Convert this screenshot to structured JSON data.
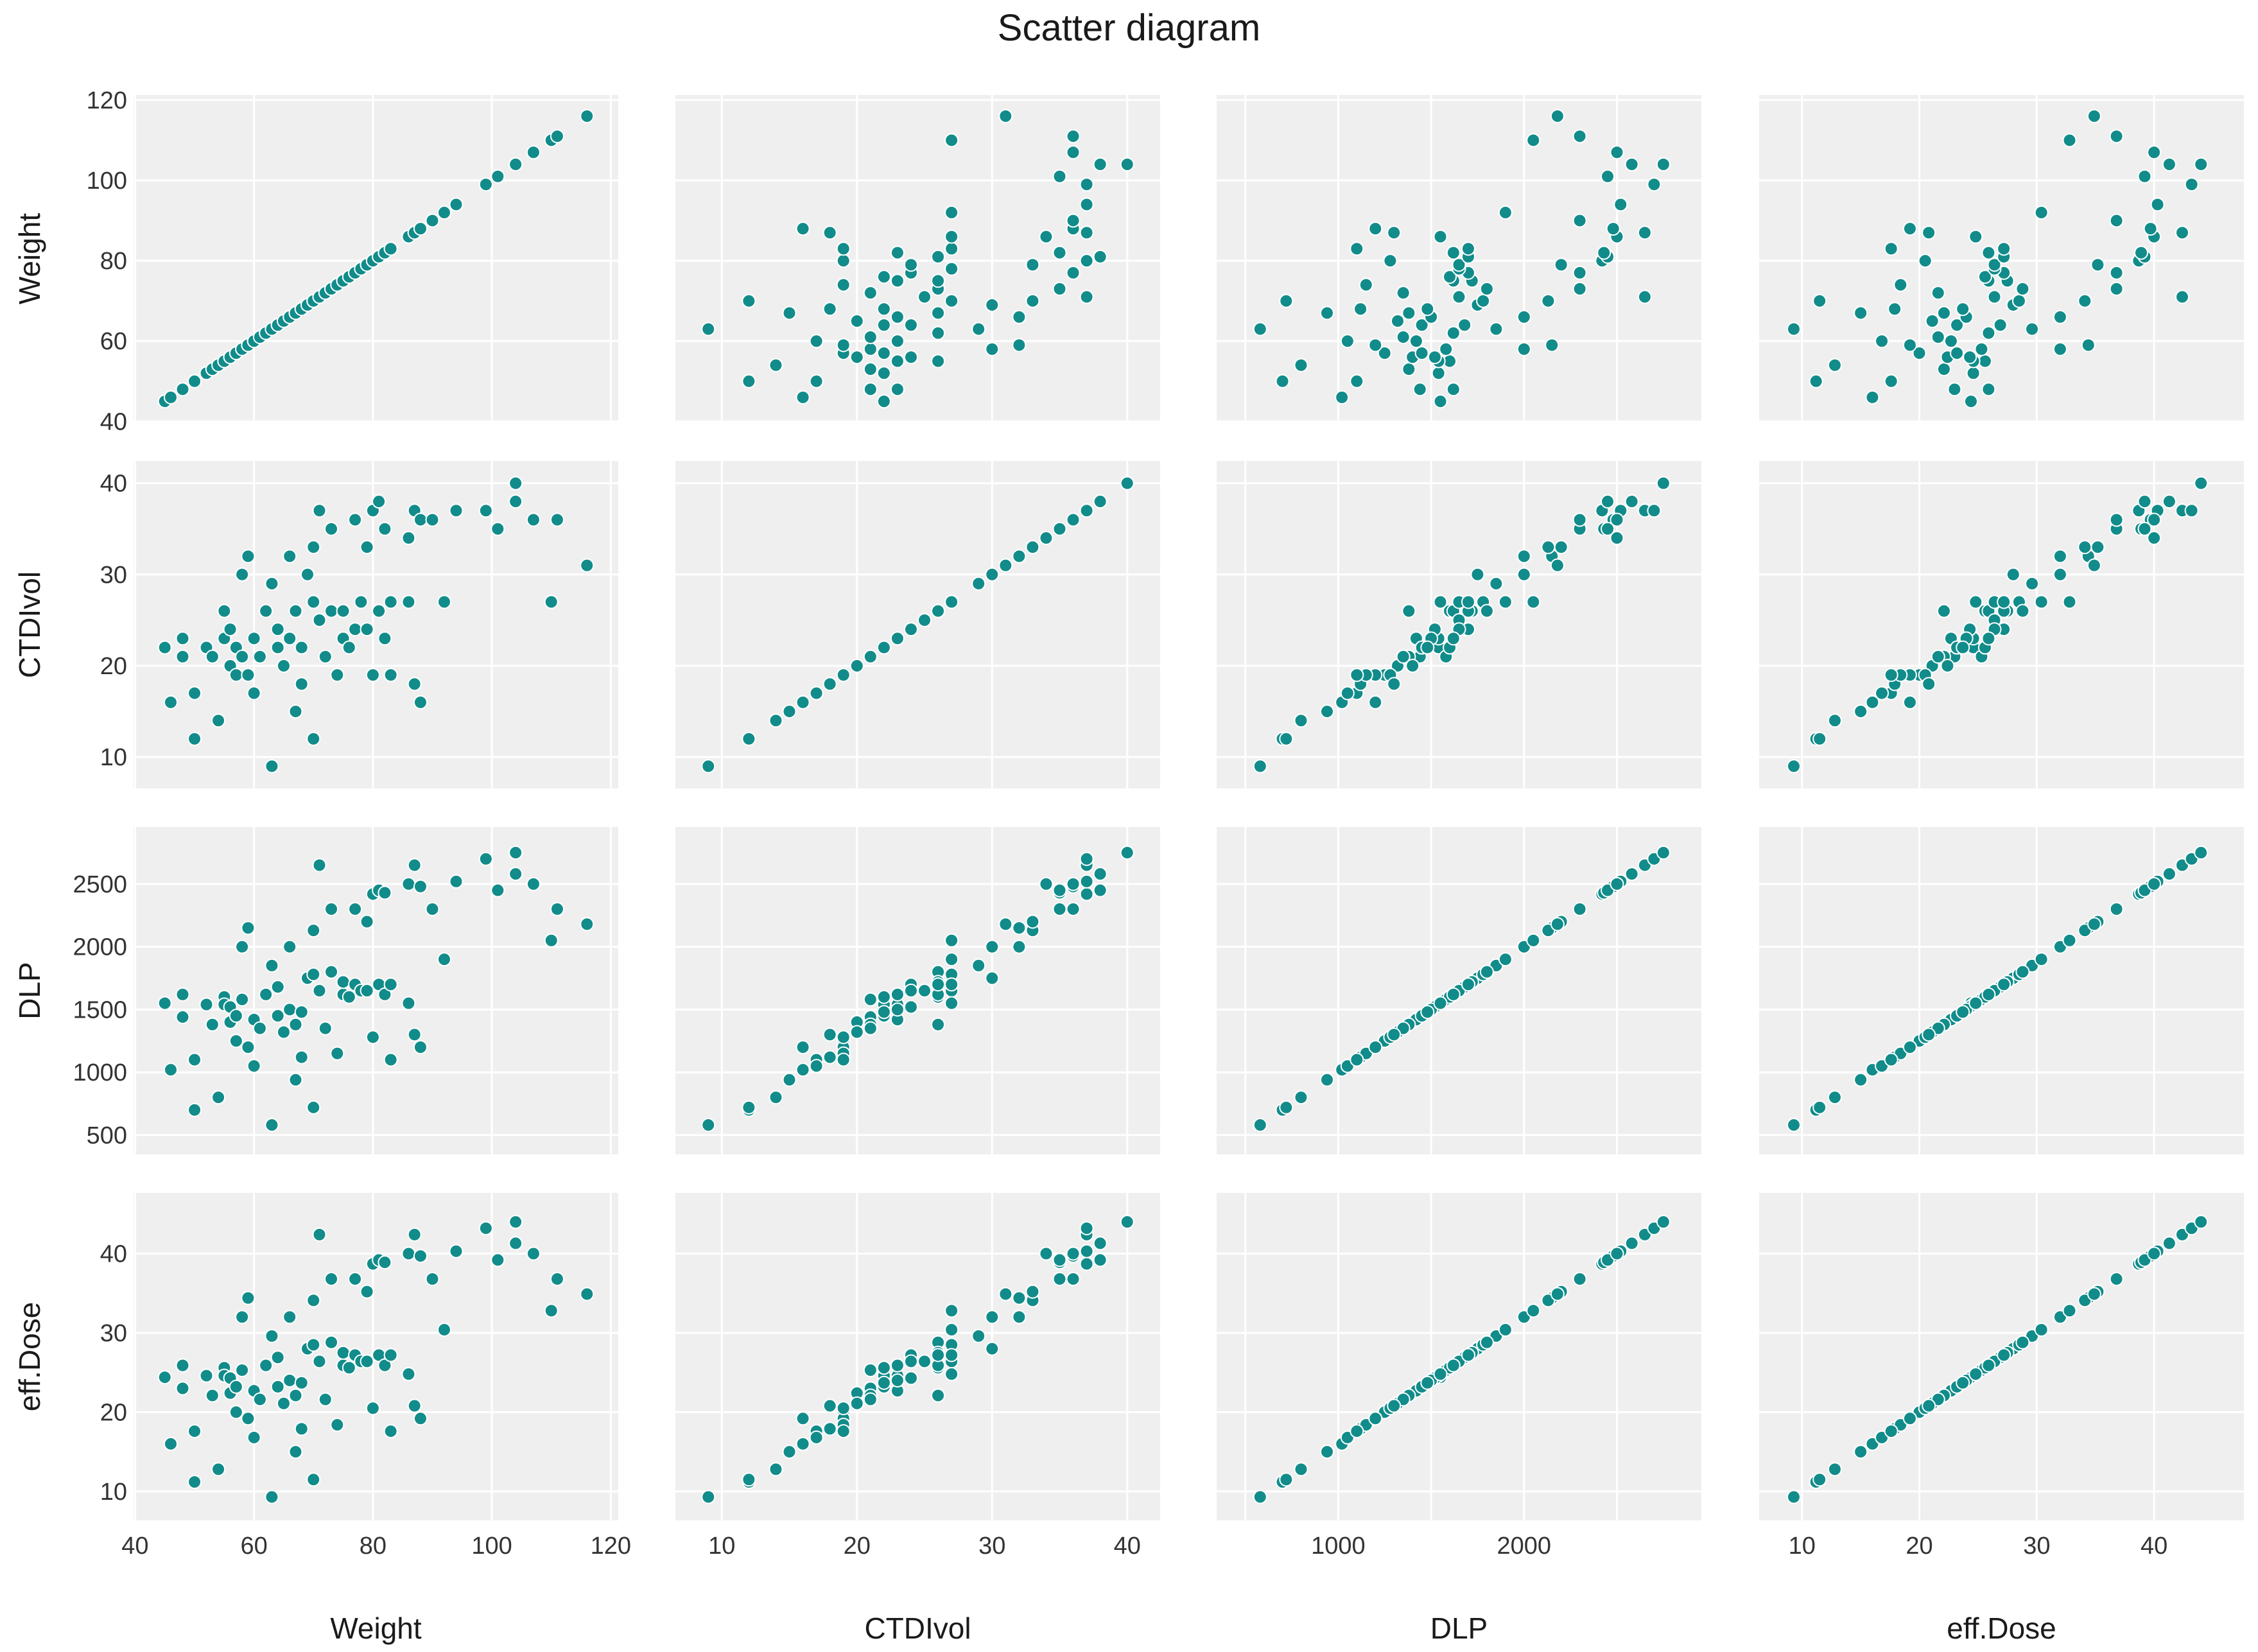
{
  "chart_data": {
    "type": "scatter",
    "title": "Scatter diagram",
    "grid": true,
    "point_color": "#118c8a",
    "background_color": "#efefef",
    "variables": [
      {
        "name": "Weight",
        "range": [
          43,
          118
        ],
        "ticks": [
          40,
          60,
          80,
          100,
          120
        ],
        "tick_labels": [
          "40",
          "60",
          "80",
          "100",
          "120"
        ]
      },
      {
        "name": "CTDIvol",
        "range": [
          8,
          41
        ],
        "ticks": [
          10,
          20,
          30,
          40
        ],
        "tick_labels": [
          "10",
          "20",
          "30",
          "40"
        ]
      },
      {
        "name": "DLP",
        "range": [
          450,
          2850
        ],
        "ticks": [
          500,
          1000,
          1500,
          2000,
          2500
        ],
        "tick_labels": [
          "500",
          "1000",
          "1500",
          "2000",
          "2500"
        ]
      },
      {
        "name": "eff.Dose",
        "range": [
          8,
          46
        ],
        "ticks": [
          10,
          20,
          30,
          40
        ],
        "tick_labels": [
          "10",
          "20",
          "30",
          "40"
        ]
      }
    ],
    "bottom_tick_labels": [
      [
        "40",
        "60",
        "80",
        "100",
        "120"
      ],
      [
        "10",
        "20",
        "30",
        "40"
      ],
      [
        "1000",
        "2000"
      ],
      [
        "10",
        "20",
        "30",
        "40"
      ]
    ],
    "observations": [
      [
        45,
        22,
        1550,
        24.4
      ],
      [
        46,
        16,
        1020,
        16
      ],
      [
        48,
        23,
        1620,
        25.9
      ],
      [
        48,
        21,
        1440,
        23
      ],
      [
        50,
        12,
        700,
        11.2
      ],
      [
        50,
        17,
        1100,
        17.6
      ],
      [
        52,
        22,
        1540,
        24.6
      ],
      [
        53,
        21,
        1380,
        22.1
      ],
      [
        54,
        14,
        800,
        12.8
      ],
      [
        55,
        26,
        1600,
        25.6
      ],
      [
        55,
        23,
        1540,
        24.6
      ],
      [
        56,
        20,
        1400,
        22.4
      ],
      [
        56,
        24,
        1520,
        24.3
      ],
      [
        57,
        19,
        1250,
        20
      ],
      [
        57,
        22,
        1450,
        23.2
      ],
      [
        58,
        21,
        1580,
        25.3
      ],
      [
        58,
        30,
        2000,
        32
      ],
      [
        59,
        32,
        2150,
        34.4
      ],
      [
        59,
        19,
        1200,
        19.2
      ],
      [
        60,
        23,
        1420,
        22.7
      ],
      [
        60,
        17,
        1050,
        16.8
      ],
      [
        61,
        21,
        1350,
        21.6
      ],
      [
        62,
        26,
        1620,
        25.9
      ],
      [
        63,
        9,
        580,
        9.3
      ],
      [
        63,
        29,
        1850,
        29.6
      ],
      [
        64,
        24,
        1680,
        26.9
      ],
      [
        64,
        22,
        1450,
        23.2
      ],
      [
        65,
        20,
        1320,
        21.1
      ],
      [
        66,
        32,
        2000,
        32
      ],
      [
        66,
        23,
        1500,
        24
      ],
      [
        67,
        15,
        940,
        15
      ],
      [
        67,
        26,
        1380,
        22.1
      ],
      [
        68,
        18,
        1120,
        17.9
      ],
      [
        68,
        22,
        1480,
        23.7
      ],
      [
        69,
        30,
        1750,
        28
      ],
      [
        70,
        12,
        720,
        11.5
      ],
      [
        70,
        33,
        2130,
        34.1
      ],
      [
        70,
        27,
        1780,
        28.5
      ],
      [
        71,
        37,
        2650,
        42.4
      ],
      [
        71,
        25,
        1650,
        26.4
      ],
      [
        72,
        21,
        1350,
        21.6
      ],
      [
        73,
        35,
        2300,
        36.8
      ],
      [
        73,
        26,
        1800,
        28.8
      ],
      [
        74,
        19,
        1150,
        18.4
      ],
      [
        75,
        23,
        1620,
        25.9
      ],
      [
        75,
        26,
        1720,
        27.5
      ],
      [
        76,
        22,
        1600,
        25.6
      ],
      [
        77,
        36,
        2300,
        36.8
      ],
      [
        77,
        24,
        1700,
        27.2
      ],
      [
        78,
        27,
        1650,
        26.4
      ],
      [
        79,
        33,
        2200,
        35.2
      ],
      [
        79,
        24,
        1650,
        26.4
      ],
      [
        80,
        19,
        1280,
        20.5
      ],
      [
        80,
        37,
        2420,
        38.7
      ],
      [
        81,
        26,
        1700,
        27.2
      ],
      [
        81,
        38,
        2450,
        39.2
      ],
      [
        82,
        23,
        1620,
        25.9
      ],
      [
        82,
        35,
        2430,
        38.9
      ],
      [
        83,
        27,
        1700,
        27.2
      ],
      [
        83,
        19,
        1100,
        17.6
      ],
      [
        86,
        34,
        2500,
        40
      ],
      [
        86,
        27,
        1550,
        24.8
      ],
      [
        87,
        18,
        1300,
        20.8
      ],
      [
        87,
        37,
        2650,
        42.4
      ],
      [
        88,
        16,
        1200,
        19.2
      ],
      [
        88,
        36,
        2480,
        39.7
      ],
      [
        90,
        36,
        2300,
        36.8
      ],
      [
        92,
        27,
        1900,
        30.4
      ],
      [
        94,
        37,
        2520,
        40.3
      ],
      [
        99,
        37,
        2700,
        43.2
      ],
      [
        101,
        35,
        2450,
        39.2
      ],
      [
        104,
        40,
        2750,
        44
      ],
      [
        104,
        38,
        2580,
        41.3
      ],
      [
        107,
        36,
        2500,
        40
      ],
      [
        110,
        27,
        2050,
        32.8
      ],
      [
        111,
        36,
        2300,
        36.8
      ],
      [
        116,
        31,
        2180,
        34.9
      ]
    ]
  }
}
